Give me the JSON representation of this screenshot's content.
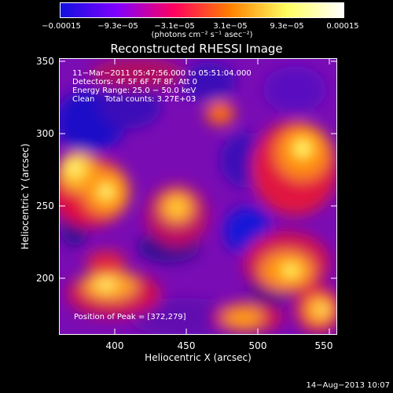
{
  "colorbar": {
    "ticks": [
      "−0.00015",
      "−9.3e−05",
      "−3.1e−05",
      "3.1e−05",
      "9.3e−05",
      "0.00015"
    ],
    "unit": "(photons cm⁻² s⁻¹ asec⁻²)",
    "colors": [
      "#1010e0",
      "#8000ff",
      "#ff0060",
      "#ff8000",
      "#ffff60",
      "#ffffff"
    ]
  },
  "title": "Reconstructed RHESSI Image",
  "info": {
    "line1": "11−Mar−2011 05:47:56.000 to 05:51:04.000",
    "line2": "Detectors: 4F 5F 6F 7F 8F, Att 0",
    "line3": "Energy Range: 25.0 − 50.0 keV",
    "line4": "Clean    Total counts: 3.27E+03",
    "peak": "Position of Peak = [372,279]"
  },
  "axes": {
    "xlabel": "Heliocentric X (arcsec)",
    "ylabel": "Heliocentric Y (arcsec)",
    "xticks": [
      "400",
      "450",
      "500",
      "550"
    ],
    "yticks": [
      "350",
      "300",
      "250",
      "200"
    ],
    "xrange": [
      362,
      556
    ],
    "yrange": [
      157,
      352
    ]
  },
  "timestamp": "14−Aug−2013 10:07"
}
